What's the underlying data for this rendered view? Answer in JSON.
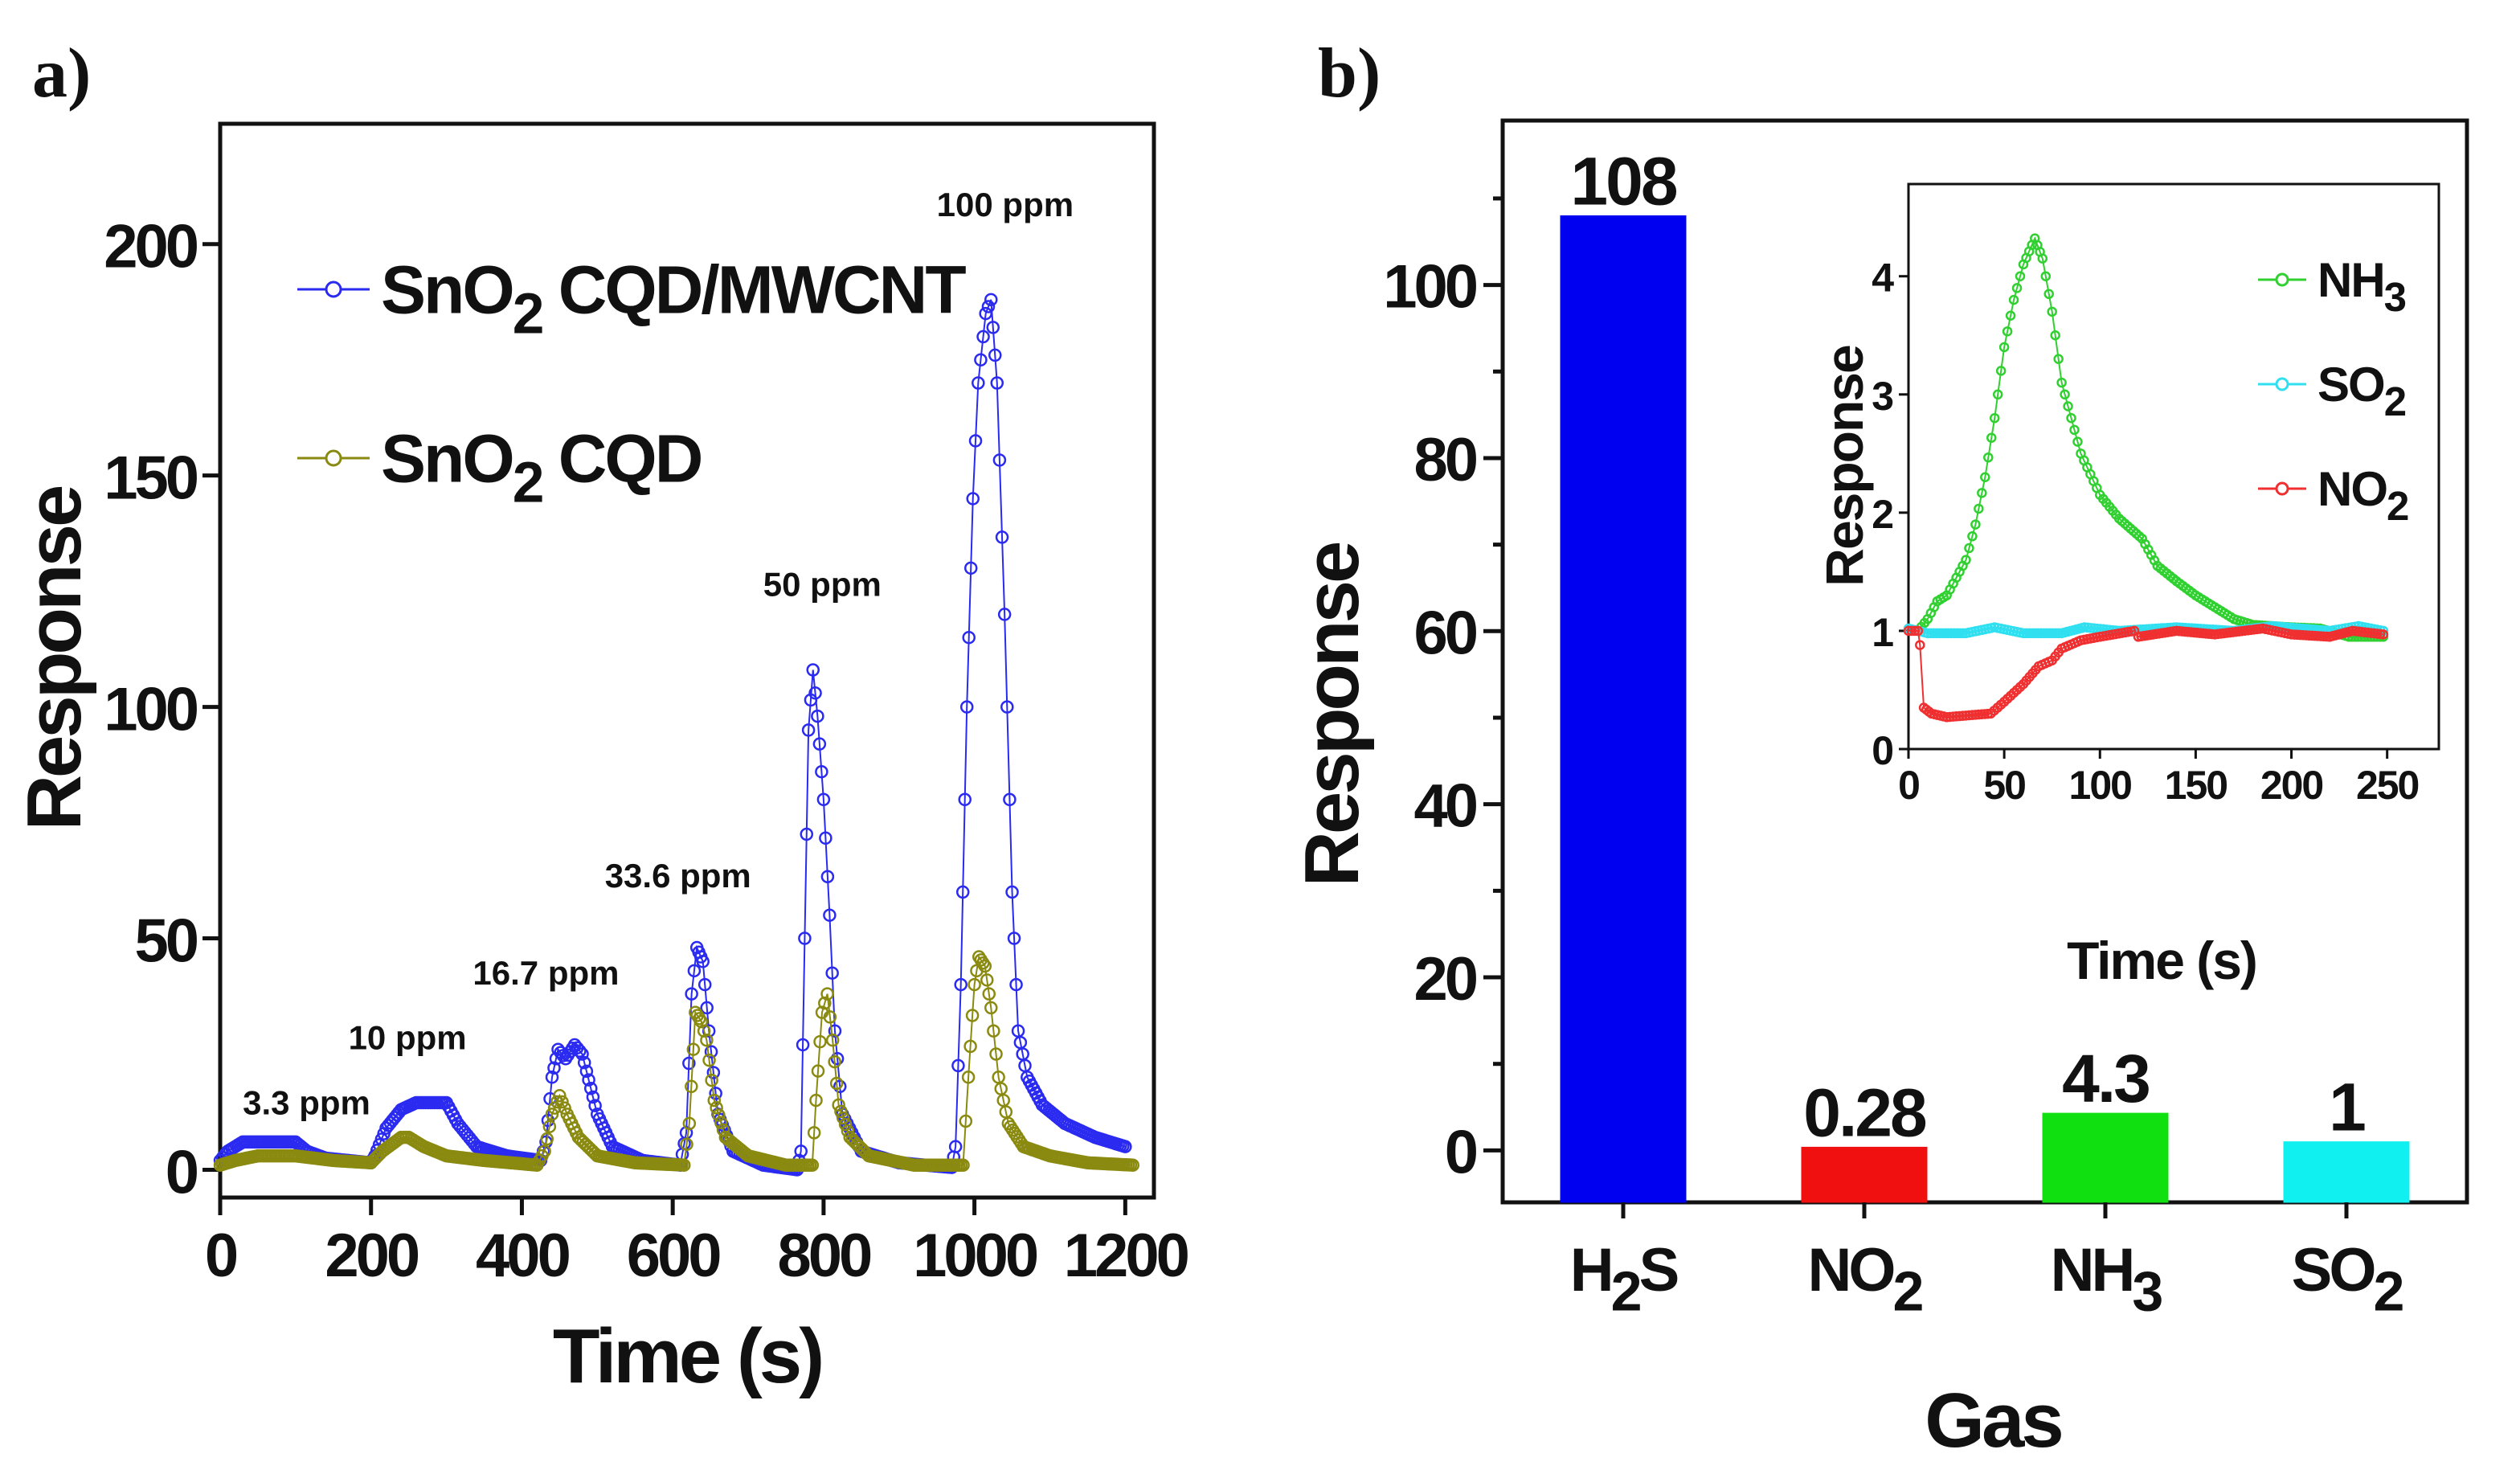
{
  "chart_data": [
    {
      "panel": "a)",
      "type": "line",
      "xlabel": "Time (s)",
      "ylabel": "Response",
      "xlim": [
        0,
        1238
      ],
      "ylim": [
        -6,
        226
      ],
      "xticks": [
        0,
        200,
        400,
        600,
        800,
        1000,
        1200
      ],
      "yticks": [
        0,
        50,
        100,
        150,
        200
      ],
      "legend_position": "top-left",
      "series": [
        {
          "name_parts": [
            "SnO",
            "2",
            " CQD/MWCNT"
          ],
          "color": "#2a2af0",
          "points": [
            [
              0,
              2
            ],
            [
              10,
              4
            ],
            [
              30,
              6
            ],
            [
              60,
              6
            ],
            [
              100,
              6
            ],
            [
              115,
              4
            ],
            [
              140,
              2.5
            ],
            [
              200,
              1.5
            ],
            [
              205,
              3
            ],
            [
              220,
              9
            ],
            [
              240,
              13
            ],
            [
              260,
              14.5
            ],
            [
              300,
              14.5
            ],
            [
              315,
              10
            ],
            [
              340,
              5
            ],
            [
              380,
              3
            ],
            [
              425,
              2
            ],
            [
              432,
              6
            ],
            [
              440,
              20
            ],
            [
              448,
              26
            ],
            [
              458,
              24
            ],
            [
              470,
              27
            ],
            [
              480,
              25
            ],
            [
              500,
              12
            ],
            [
              520,
              5
            ],
            [
              560,
              2
            ],
            [
              610,
              1
            ],
            [
              618,
              8
            ],
            [
              625,
              38
            ],
            [
              632,
              48
            ],
            [
              640,
              45
            ],
            [
              648,
              30
            ],
            [
              660,
              12
            ],
            [
              680,
              4
            ],
            [
              720,
              1
            ],
            [
              765,
              0
            ],
            [
              770,
              4
            ],
            [
              775,
              50
            ],
            [
              780,
              95
            ],
            [
              786,
              108
            ],
            [
              792,
              98
            ],
            [
              800,
              80
            ],
            [
              808,
              55
            ],
            [
              815,
              30
            ],
            [
              825,
              12
            ],
            [
              850,
              4
            ],
            [
              900,
              1.5
            ],
            [
              970,
              0.5
            ],
            [
              975,
              5
            ],
            [
              982,
              40
            ],
            [
              990,
              100
            ],
            [
              998,
              145
            ],
            [
              1005,
              170
            ],
            [
              1015,
              185
            ],
            [
              1022,
              188
            ],
            [
              1030,
              170
            ],
            [
              1040,
              120
            ],
            [
              1050,
              60
            ],
            [
              1058,
              30
            ],
            [
              1070,
              20
            ],
            [
              1090,
              14
            ],
            [
              1120,
              10
            ],
            [
              1160,
              7
            ],
            [
              1200,
              5
            ]
          ]
        },
        {
          "name_parts": [
            "SnO",
            "2",
            " CQD"
          ],
          "color": "#8a8a10",
          "points": [
            [
              0,
              1
            ],
            [
              20,
              2
            ],
            [
              50,
              3
            ],
            [
              100,
              3
            ],
            [
              150,
              2
            ],
            [
              200,
              1.5
            ],
            [
              215,
              4
            ],
            [
              240,
              7
            ],
            [
              250,
              7
            ],
            [
              270,
              5
            ],
            [
              300,
              3
            ],
            [
              350,
              2
            ],
            [
              420,
              1
            ],
            [
              430,
              4
            ],
            [
              440,
              12
            ],
            [
              450,
              16
            ],
            [
              460,
              12
            ],
            [
              475,
              7
            ],
            [
              500,
              3
            ],
            [
              550,
              1.5
            ],
            [
              615,
              1
            ],
            [
              622,
              10
            ],
            [
              630,
              34
            ],
            [
              638,
              32
            ],
            [
              645,
              28
            ],
            [
              655,
              15
            ],
            [
              670,
              7
            ],
            [
              700,
              3
            ],
            [
              750,
              1
            ],
            [
              785,
              1
            ],
            [
              790,
              15
            ],
            [
              798,
              34
            ],
            [
              805,
              38
            ],
            [
              812,
              28
            ],
            [
              820,
              14
            ],
            [
              835,
              7
            ],
            [
              860,
              3
            ],
            [
              920,
              1
            ],
            [
              985,
              1
            ],
            [
              992,
              20
            ],
            [
              1000,
              40
            ],
            [
              1006,
              46
            ],
            [
              1014,
              44
            ],
            [
              1022,
              35
            ],
            [
              1032,
              20
            ],
            [
              1045,
              10
            ],
            [
              1065,
              5
            ],
            [
              1100,
              3
            ],
            [
              1150,
              1.5
            ],
            [
              1210,
              1
            ]
          ]
        }
      ],
      "annotations": [
        {
          "text": "3.3 ppm",
          "x": 30,
          "y": 12
        },
        {
          "text": "10 ppm",
          "x": 170,
          "y": 26
        },
        {
          "text": "16.7 ppm",
          "x": 335,
          "y": 40
        },
        {
          "text": "33.6 ppm",
          "x": 510,
          "y": 61
        },
        {
          "text": "50 ppm",
          "x": 720,
          "y": 124
        },
        {
          "text": "100 ppm",
          "x": 950,
          "y": 206
        }
      ]
    },
    {
      "panel": "b)",
      "type": "bar",
      "xlabel": "Gas",
      "ylabel": "Response",
      "ylim": [
        -6,
        119
      ],
      "yticks": [
        0,
        20,
        40,
        60,
        80,
        100
      ],
      "categories": [
        [
          "H",
          "2",
          "S"
        ],
        [
          "NO",
          "2",
          ""
        ],
        [
          "NH",
          "3",
          ""
        ],
        [
          "SO",
          "2",
          ""
        ]
      ],
      "values": [
        108,
        0.28,
        4.3,
        1
      ],
      "value_labels": [
        "108",
        "0.28",
        "4.3",
        "1"
      ],
      "colors": [
        "#0000f0",
        "#f01010",
        "#10e010",
        "#10f0f0"
      ]
    },
    {
      "panel": "b) inset",
      "type": "line",
      "xlabel": "Time (s)",
      "ylabel": "Response",
      "xlim": [
        0,
        277
      ],
      "ylim": [
        0,
        4.78
      ],
      "xticks": [
        0,
        50,
        100,
        150,
        200,
        250
      ],
      "yticks": [
        0,
        1,
        2,
        3,
        4
      ],
      "legend_position": "top-right",
      "series": [
        {
          "name_parts": [
            "NH",
            "3"
          ],
          "color": "#30d030",
          "points": [
            [
              5,
              1
            ],
            [
              10,
              1.1
            ],
            [
              15,
              1.25
            ],
            [
              20,
              1.3
            ],
            [
              25,
              1.45
            ],
            [
              30,
              1.6
            ],
            [
              35,
              1.9
            ],
            [
              40,
              2.3
            ],
            [
              45,
              2.8
            ],
            [
              50,
              3.4
            ],
            [
              55,
              3.8
            ],
            [
              60,
              4.1
            ],
            [
              66,
              4.32
            ],
            [
              70,
              4.15
            ],
            [
              75,
              3.7
            ],
            [
              80,
              3.1
            ],
            [
              90,
              2.5
            ],
            [
              100,
              2.15
            ],
            [
              110,
              1.95
            ],
            [
              122,
              1.78
            ],
            [
              130,
              1.55
            ],
            [
              140,
              1.42
            ],
            [
              150,
              1.3
            ],
            [
              160,
              1.2
            ],
            [
              170,
              1.1
            ],
            [
              180,
              1.05
            ],
            [
              200,
              1.03
            ],
            [
              215,
              1.02
            ],
            [
              230,
              0.95
            ],
            [
              248,
              0.95
            ]
          ]
        },
        {
          "name_parts": [
            "SO",
            "2"
          ],
          "color": "#30e0f0",
          "points": [
            [
              0,
              1.02
            ],
            [
              10,
              0.98
            ],
            [
              30,
              0.98
            ],
            [
              45,
              1.03
            ],
            [
              60,
              0.98
            ],
            [
              80,
              0.98
            ],
            [
              92,
              1.03
            ],
            [
              110,
              1.0
            ],
            [
              140,
              1.03
            ],
            [
              170,
              1.0
            ],
            [
              190,
              1.04
            ],
            [
              220,
              1.0
            ],
            [
              235,
              1.04
            ],
            [
              248,
              1.0
            ]
          ]
        },
        {
          "name_parts": [
            "NO",
            "2"
          ],
          "color": "#f03030",
          "points": [
            [
              0,
              1
            ],
            [
              5,
              1
            ],
            [
              6,
              0.88
            ],
            [
              8,
              0.35
            ],
            [
              12,
              0.3
            ],
            [
              20,
              0.27
            ],
            [
              35,
              0.29
            ],
            [
              43,
              0.3
            ],
            [
              50,
              0.4
            ],
            [
              60,
              0.55
            ],
            [
              68,
              0.7
            ],
            [
              75,
              0.75
            ],
            [
              80,
              0.85
            ],
            [
              90,
              0.92
            ],
            [
              100,
              0.95
            ],
            [
              118,
              1.0
            ],
            [
              120,
              0.95
            ],
            [
              140,
              1.0
            ],
            [
              160,
              0.97
            ],
            [
              185,
              1.02
            ],
            [
              200,
              0.97
            ],
            [
              220,
              0.95
            ],
            [
              232,
              1.0
            ],
            [
              248,
              0.97
            ]
          ]
        }
      ]
    }
  ]
}
